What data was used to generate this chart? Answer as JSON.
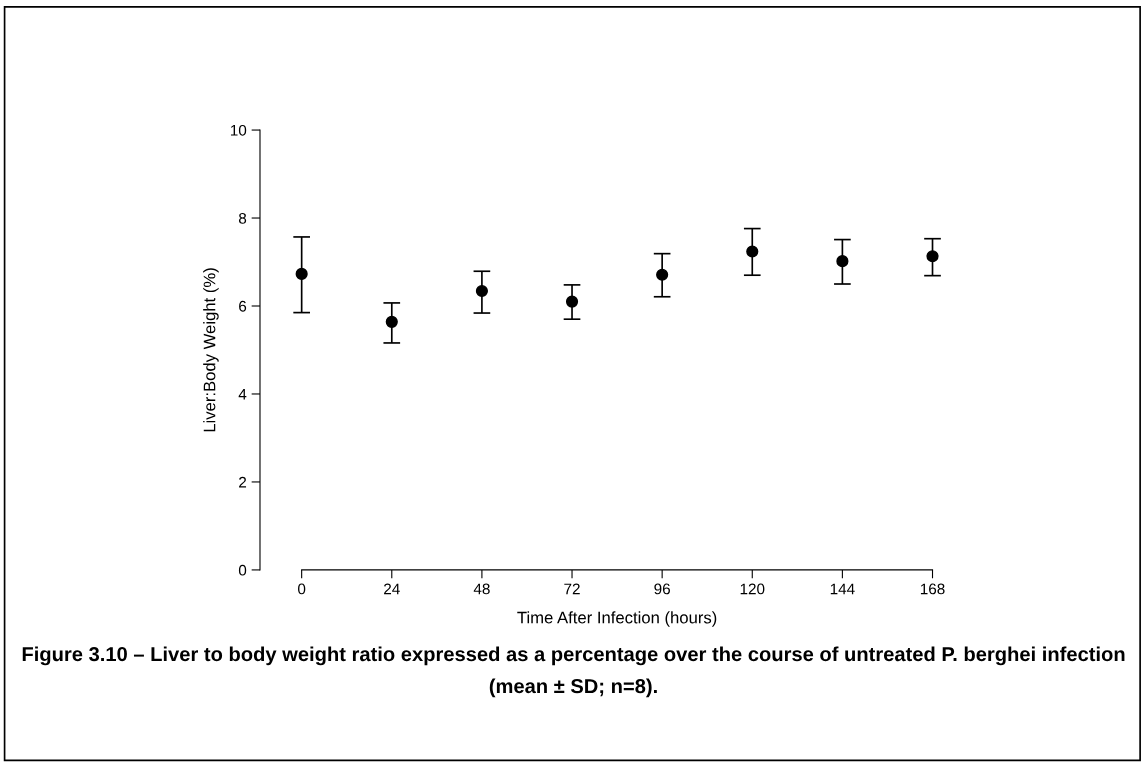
{
  "chart_data": {
    "type": "scatter",
    "xlabel": "Time After Infection (hours)",
    "ylabel": "Liver:Body Weight (%)",
    "x": [
      0,
      24,
      48,
      72,
      96,
      120,
      144,
      168
    ],
    "series": [
      {
        "color": "#000000",
        "values": [
          6.73,
          5.64,
          6.34,
          6.1,
          6.71,
          7.24,
          7.02,
          7.13
        ],
        "errors": [
          [
            5.85,
            7.57
          ],
          [
            5.16,
            6.07
          ],
          [
            5.84,
            6.79
          ],
          [
            5.7,
            6.48
          ],
          [
            6.21,
            7.19
          ],
          [
            6.7,
            7.76
          ],
          [
            6.5,
            7.51
          ],
          [
            6.69,
            7.53
          ]
        ]
      }
    ],
    "xlim": [
      0,
      168
    ],
    "xticks": [
      0,
      24,
      48,
      72,
      96,
      120,
      144,
      168
    ],
    "ylim": [
      0,
      10
    ],
    "yticks": [
      0,
      2,
      4,
      6,
      8,
      10
    ],
    "marker": "circle",
    "grid": false,
    "legend": false,
    "annotations": [
      "Figure 3.10 – Liver to body weight ratio expressed as a percentage over the course of untreated P. berghei infection (mean ± SD; n=8)."
    ]
  }
}
